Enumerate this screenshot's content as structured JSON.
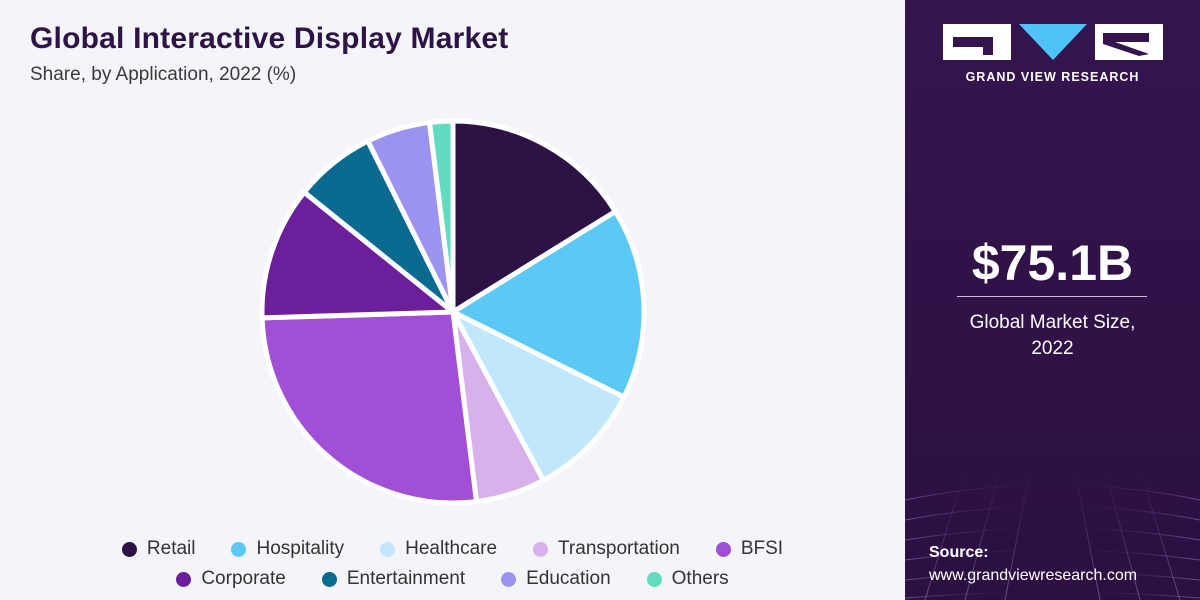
{
  "header": {
    "title": "Global Interactive Display Market",
    "subtitle": "Share, by Application, 2022 (%)"
  },
  "chart_data": {
    "type": "pie",
    "title": "Global Interactive Display Market",
    "subtitle": "Share, by Application, 2022 (%)",
    "start_angle_deg": 0,
    "direction": "clockwise",
    "legend_position": "bottom",
    "slices": [
      {
        "name": "Retail",
        "value": 16.5,
        "color": "#2e1245"
      },
      {
        "name": "Hospitality",
        "value": 16.5,
        "color": "#5bc8f5"
      },
      {
        "name": "Healthcare",
        "value": 10.0,
        "color": "#c0e8fa"
      },
      {
        "name": "Transportation",
        "value": 6.0,
        "color": "#d6b1ec"
      },
      {
        "name": "BFSI",
        "value": 27.0,
        "color": "#a04fd6"
      },
      {
        "name": "Corporate",
        "value": 11.5,
        "color": "#6c1f9a"
      },
      {
        "name": "Entertainment",
        "value": 7.0,
        "color": "#0a6a90"
      },
      {
        "name": "Education",
        "value": 5.5,
        "color": "#9b93f0"
      },
      {
        "name": "Others",
        "value": 2.0,
        "color": "#63dbc0"
      }
    ]
  },
  "legend": {
    "rows": [
      [
        {
          "label": "Retail",
          "color": "#2e1245"
        },
        {
          "label": "Hospitality",
          "color": "#5bc8f5"
        },
        {
          "label": "Healthcare",
          "color": "#c0e8fa"
        },
        {
          "label": "Transportation",
          "color": "#d6b1ec"
        },
        {
          "label": "BFSI",
          "color": "#a04fd6"
        }
      ],
      [
        {
          "label": "Corporate",
          "color": "#6c1f9a"
        },
        {
          "label": "Entertainment",
          "color": "#0a6a90"
        },
        {
          "label": "Education",
          "color": "#9b93f0"
        },
        {
          "label": "Others",
          "color": "#63dbc0"
        }
      ]
    ]
  },
  "sidebar": {
    "logo_text": "GRAND VIEW RESEARCH",
    "market_size": "$75.1B",
    "market_label_line1": "Global Market Size,",
    "market_label_line2": "2022",
    "source_label": "Source:",
    "source_url": "www.grandviewresearch.com"
  }
}
